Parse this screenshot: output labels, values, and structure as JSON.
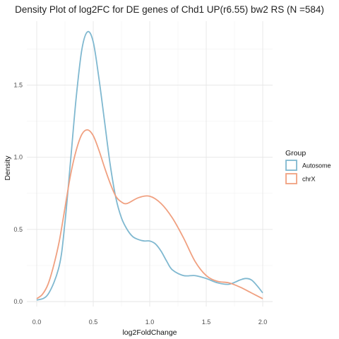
{
  "chart_data": {
    "type": "line",
    "title": "Density Plot of log2FC for DE genes of  Chd1 UP(r6.55) bw2 RS (N =584)",
    "xlabel": "log2FoldChange",
    "ylabel": "Density",
    "xlim": [
      0.0,
      2.0
    ],
    "ylim": [
      0.0,
      1.87
    ],
    "x_ticks": [
      "0.0",
      "0.5",
      "1.0",
      "1.5",
      "2.0"
    ],
    "y_ticks": [
      "0.0",
      "0.5",
      "1.0",
      "1.5"
    ],
    "grid": true,
    "legend_position": "right",
    "legend_title": "Group",
    "series": [
      {
        "name": "Autosome",
        "color": "#7fb8d0",
        "x": [
          0.0,
          0.1,
          0.2,
          0.25,
          0.3,
          0.35,
          0.4,
          0.45,
          0.5,
          0.55,
          0.6,
          0.65,
          0.7,
          0.75,
          0.8,
          0.85,
          0.9,
          0.95,
          1.0,
          1.05,
          1.1,
          1.15,
          1.2,
          1.3,
          1.4,
          1.5,
          1.6,
          1.7,
          1.8,
          1.85,
          1.9,
          1.95,
          2.0
        ],
        "y": [
          0.01,
          0.05,
          0.25,
          0.55,
          0.98,
          1.42,
          1.75,
          1.87,
          1.8,
          1.55,
          1.25,
          0.95,
          0.72,
          0.58,
          0.5,
          0.45,
          0.43,
          0.42,
          0.42,
          0.4,
          0.35,
          0.28,
          0.22,
          0.18,
          0.18,
          0.16,
          0.13,
          0.12,
          0.15,
          0.16,
          0.15,
          0.11,
          0.06
        ]
      },
      {
        "name": "chrX",
        "color": "#f0a080",
        "x": [
          0.0,
          0.05,
          0.1,
          0.15,
          0.2,
          0.25,
          0.3,
          0.35,
          0.4,
          0.45,
          0.5,
          0.55,
          0.6,
          0.65,
          0.7,
          0.75,
          0.8,
          0.9,
          1.0,
          1.1,
          1.2,
          1.3,
          1.4,
          1.5,
          1.6,
          1.7,
          1.8,
          1.9,
          2.0
        ],
        "y": [
          0.02,
          0.05,
          0.12,
          0.25,
          0.42,
          0.65,
          0.88,
          1.05,
          1.16,
          1.19,
          1.15,
          1.05,
          0.93,
          0.82,
          0.73,
          0.69,
          0.68,
          0.72,
          0.73,
          0.68,
          0.58,
          0.44,
          0.28,
          0.18,
          0.14,
          0.13,
          0.1,
          0.06,
          0.02
        ]
      }
    ]
  }
}
